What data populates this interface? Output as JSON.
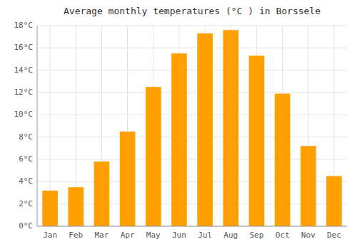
{
  "chart_data": {
    "type": "bar",
    "title": "Average monthly temperatures (°C ) in Borssele",
    "categories": [
      "Jan",
      "Feb",
      "Mar",
      "Apr",
      "May",
      "Jun",
      "Jul",
      "Aug",
      "Sep",
      "Oct",
      "Nov",
      "Dec"
    ],
    "values": [
      3.2,
      3.5,
      5.8,
      8.5,
      12.5,
      15.5,
      17.3,
      17.6,
      15.3,
      11.9,
      7.2,
      4.5
    ],
    "color": "#FFA000",
    "ylim": [
      0,
      18
    ],
    "yticks": [
      {
        "value": 0,
        "label": "0°C"
      },
      {
        "value": 2,
        "label": "2°C"
      },
      {
        "value": 4,
        "label": "4°C"
      },
      {
        "value": 6,
        "label": "6°C"
      },
      {
        "value": 8,
        "label": "8°C"
      },
      {
        "value": 10,
        "label": "10°C"
      },
      {
        "value": 12,
        "label": "12°C"
      },
      {
        "value": 14,
        "label": "14°C"
      },
      {
        "value": 16,
        "label": "16°C"
      },
      {
        "value": 18,
        "label": "18°C"
      }
    ],
    "grid": true
  }
}
